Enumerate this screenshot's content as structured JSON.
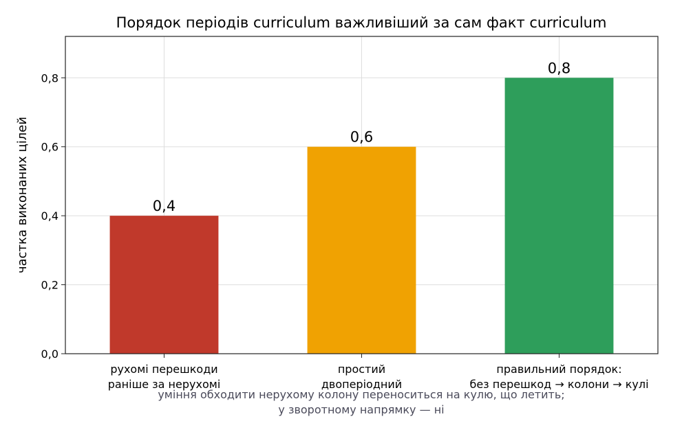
{
  "chart_data": {
    "type": "bar",
    "title": "Порядок періодів curriculum важливіший за сам факт curriculum",
    "ylabel": "частка виконаних цілей",
    "xlabel": "",
    "ylim": [
      0,
      0.92
    ],
    "yticks": [
      0.0,
      0.2,
      0.4,
      0.6,
      0.8
    ],
    "ytick_labels": [
      "0,0",
      "0,2",
      "0,4",
      "0,6",
      "0,8"
    ],
    "grid": true,
    "categories": [
      [
        "рухомі перешкоди",
        "раніше за нерухомі"
      ],
      [
        "простий",
        "двоперіодний"
      ],
      [
        "правильний порядок:",
        "без перешкод → колони → кулі"
      ]
    ],
    "values": [
      0.4,
      0.6,
      0.8
    ],
    "value_labels": [
      "0,4",
      "0,6",
      "0,8"
    ],
    "colors": [
      "#c0392b",
      "#f0a202",
      "#2e9e5b"
    ]
  },
  "caption": {
    "line1": "уміння обходити нерухому колону переноситься на кулю, що летить;",
    "line2": "у зворотному напрямку — ні"
  }
}
